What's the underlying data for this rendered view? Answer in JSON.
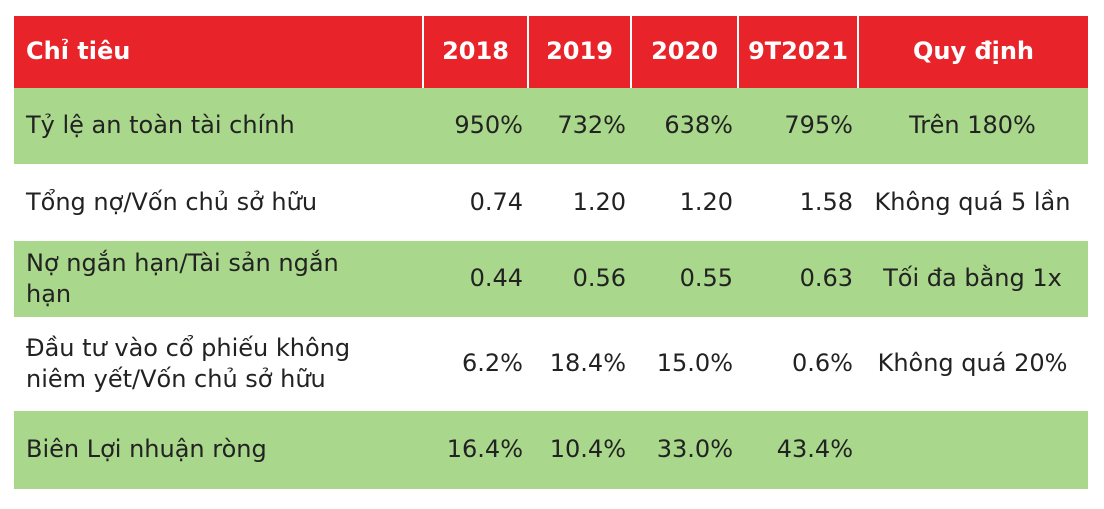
{
  "table": {
    "header": [
      "Chỉ tiêu",
      "2018",
      "2019",
      "2020",
      "9T2021",
      "Quy định"
    ],
    "rows": [
      [
        "Tỷ lệ an toàn tài chính",
        "950%",
        "732%",
        "638%",
        "795%",
        "Trên 180%"
      ],
      [
        "Tổng nợ/Vốn chủ sở hữu",
        "0.74",
        "1.20",
        "1.20",
        "1.58",
        "Không quá 5 lần"
      ],
      [
        "Nợ ngắn hạn/Tài sản ngắn hạn",
        "0.44",
        "0.56",
        "0.55",
        "0.63",
        "Tối đa bằng 1x"
      ],
      [
        "Đầu tư vào cổ phiếu không niêm yết/Vốn chủ sở hữu",
        "6.2%",
        "18.4%",
        "15.0%",
        "0.6%",
        "Không quá 20%"
      ],
      [
        "Biên Lợi nhuận ròng",
        "16.4%",
        "10.4%",
        "33.0%",
        "43.4%"
      ]
    ]
  }
}
